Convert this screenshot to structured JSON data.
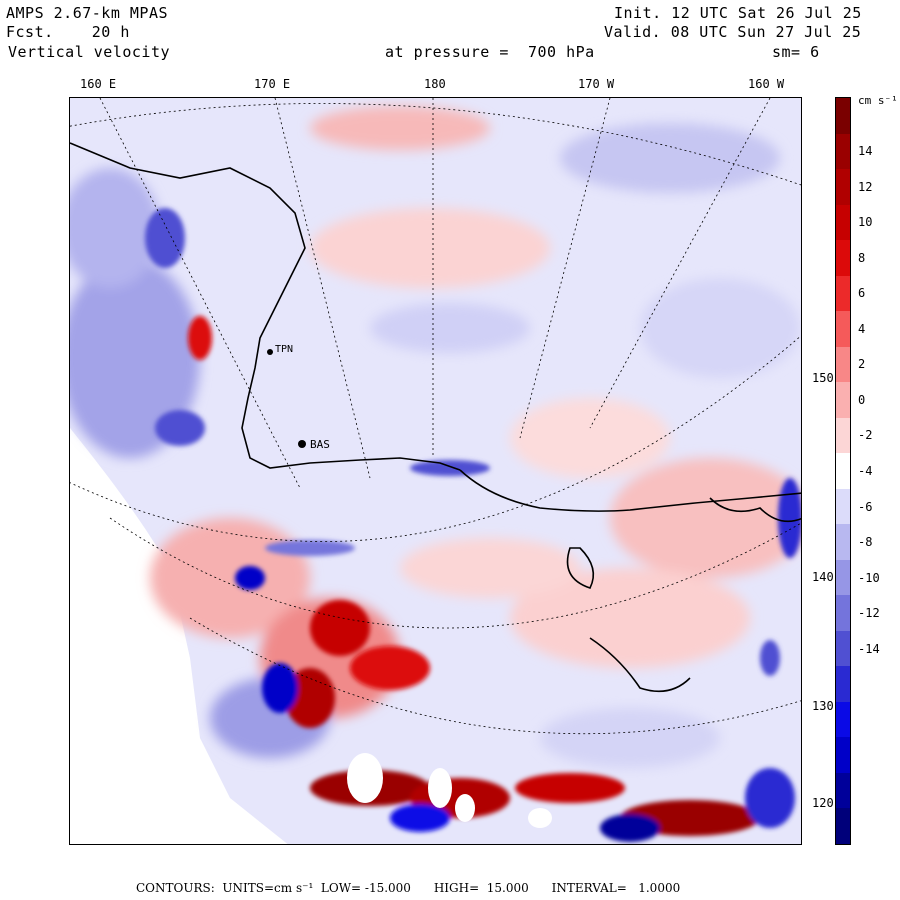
{
  "header": {
    "model": "AMPS 2.67-km MPAS",
    "forecast": "Fcst.    20 h",
    "field": "Vertical velocity",
    "init": "Init. 12 UTC Sat 26 Jul 25",
    "valid": "Valid. 08 UTC Sun 27 Jul 25",
    "pressure": "at pressure =  700 hPa",
    "smoothing": "sm= 6"
  },
  "longitude_labels": [
    "160 E",
    "170 E",
    "180",
    "170 W",
    "160 W"
  ],
  "latitude_labels": [
    "150 W",
    "140 W",
    "130 W",
    "120 W"
  ],
  "station_labels": [
    "TPN",
    "BAS"
  ],
  "colorbar": {
    "unit": "cm s⁻¹",
    "ticks": [
      "14",
      "12",
      "10",
      "8",
      "6",
      "4",
      "2",
      "0",
      "-2",
      "-4",
      "-6",
      "-8",
      "-10",
      "-12",
      "-14"
    ],
    "colors": [
      "#7a0000",
      "#9a0000",
      "#b00000",
      "#c60000",
      "#dc0a0a",
      "#ec2a2a",
      "#f55a5a",
      "#f88787",
      "#fab0b0",
      "#fcd6d6",
      "#ffffff",
      "#dcdcfa",
      "#b8b8f0",
      "#9696e6",
      "#7474dc",
      "#5050d2",
      "#2a2ad2",
      "#0a0ae6",
      "#0000c8",
      "#00009a",
      "#00007a"
    ]
  },
  "footer": {
    "contours": "CONTOURS:  UNITS=cm s⁻¹  LOW= -15.000      HIGH=  15.000      INTERVAL=   1.0000"
  },
  "colors": {
    "weak_rising": "#fcd6d6",
    "weak_sinking": "#dcdcfa",
    "strong_rising": "#b00000",
    "strong_sinking": "#0000c8"
  }
}
